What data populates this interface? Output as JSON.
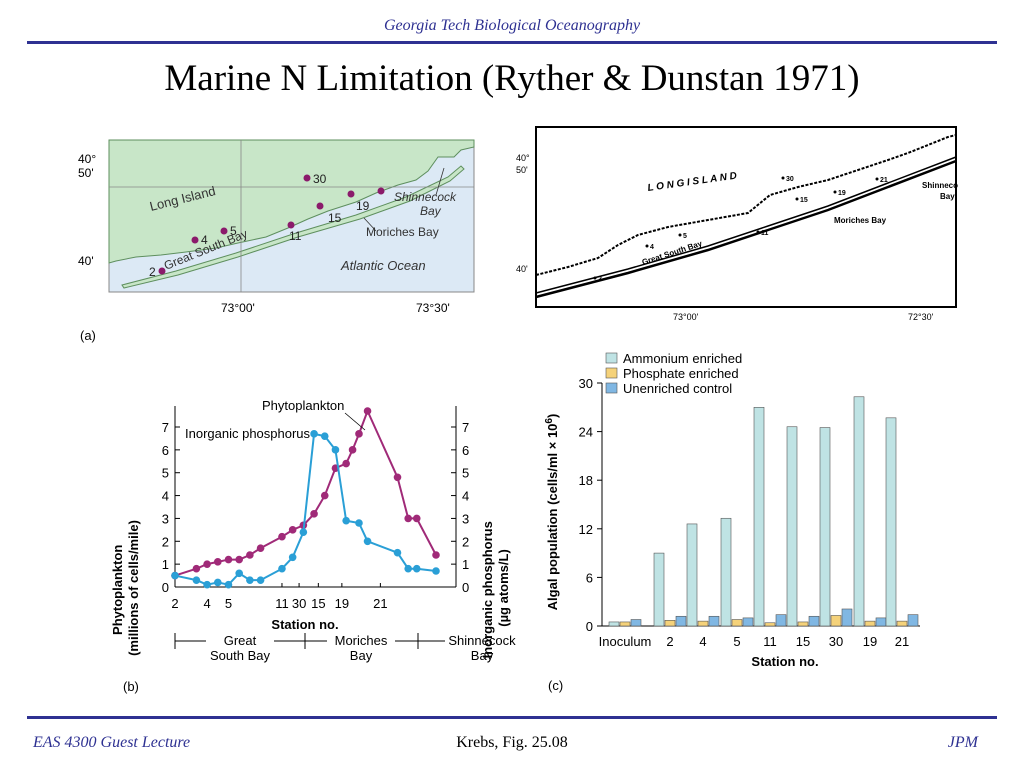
{
  "header": {
    "title": "Georgia Tech Biological Oceanography"
  },
  "slide": {
    "title": "Marine N Limitation (Ryther & Dunstan 1971)"
  },
  "footer": {
    "left": "EAS 4300 Guest Lecture",
    "center": "Krebs, Fig. 25.08",
    "right": "JPM"
  },
  "colors": {
    "accent": "#2e3192",
    "land": "#c8e6c8",
    "ocean": "#dce9f5",
    "station": "#8b1a6b",
    "phyto": "#a02a78",
    "phosphorus": "#2a9fd6",
    "ammonium": "#bfe3e4",
    "phosphate": "#f5d27a",
    "unenriched": "#80b7e3"
  },
  "map_a": {
    "panel_label": "(a)",
    "lat_labels": [
      "40°",
      "50'",
      "40'"
    ],
    "lon_labels": [
      "73°00'",
      "73°30'"
    ],
    "place_labels": {
      "long_island": "Long Island",
      "great_south_bay": "Great South Bay",
      "moriches_bay": "Moriches Bay",
      "shinnecock_bay_1": "Shinnecock",
      "shinnecock_bay_2": "Bay",
      "atlantic_ocean": "Atlantic Ocean"
    },
    "stations": [
      "2",
      "4",
      "5",
      "11",
      "30",
      "15",
      "19"
    ]
  },
  "map_b": {
    "lat_labels": [
      "40°",
      "50'",
      "40'"
    ],
    "lon_labels": [
      "73°00'",
      "72°30'"
    ],
    "place_labels": {
      "long_island": "L O N G   I S L A N D",
      "great_south_bay": "Great South Bay",
      "moriches_bay": "Moriches Bay",
      "shinnecock_1": "Shinnecock",
      "shinnecock_2": "Bay"
    },
    "stations": [
      "2",
      "4",
      "5",
      "11",
      "30",
      "15",
      "19",
      "21"
    ]
  },
  "chart_data": [
    {
      "type": "line",
      "panel_label": "(b)",
      "x_tick_labels": [
        "2",
        "4",
        "5",
        "11",
        "30",
        "15",
        "19",
        "21"
      ],
      "xlabel": "Station no.",
      "ylabel_left": [
        "Phytoplankton",
        "(millions of cells/mile)"
      ],
      "ylabel_right": [
        "Inorganic phosphorus",
        "(µg atoms/L)"
      ],
      "ylim": [
        0,
        7
      ],
      "yticks": [
        0,
        1,
        2,
        3,
        4,
        5,
        6,
        7
      ],
      "regions": [
        "Great South Bay",
        "Moriches Bay",
        "Shinnecock Bay"
      ],
      "region_lines": [
        [
          "Great",
          "South Bay"
        ],
        [
          "Moriches",
          "Bay"
        ],
        [
          "Shinnecock",
          "Bay"
        ]
      ],
      "series": [
        {
          "name": "Phytoplankton",
          "x": [
            0,
            1,
            1.5,
            2,
            2.5,
            3,
            3.5,
            4,
            5,
            5.5,
            6,
            6.5,
            7,
            7.5,
            8,
            8.3,
            8.6,
            9,
            10.4,
            10.9,
            11.3,
            12.2
          ],
          "values": [
            0.5,
            0.8,
            1.0,
            1.1,
            1.2,
            1.2,
            1.4,
            1.7,
            2.2,
            2.5,
            2.7,
            3.2,
            4.0,
            5.2,
            5.4,
            6.0,
            6.7,
            7.7,
            4.8,
            3.0,
            3.0,
            1.4
          ]
        },
        {
          "name": "Inorganic phosphorus",
          "x": [
            0,
            1,
            1.5,
            2,
            2.5,
            3,
            3.5,
            4,
            5,
            5.5,
            6,
            6.5,
            7,
            7.5,
            8,
            8.6,
            9,
            10.4,
            10.9,
            11.3,
            12.2
          ],
          "values": [
            0.5,
            0.3,
            0.1,
            0.2,
            0.1,
            0.6,
            0.3,
            0.3,
            0.8,
            1.3,
            2.4,
            6.7,
            6.6,
            6.0,
            2.9,
            2.8,
            2.0,
            1.5,
            0.8,
            0.8,
            0.7
          ]
        }
      ]
    },
    {
      "type": "bar",
      "panel_label": "(c)",
      "categories": [
        "Inoculum",
        "2",
        "4",
        "5",
        "11",
        "15",
        "30",
        "19",
        "21"
      ],
      "xlabel": "Station no.",
      "ylabel": "Algal population (cells/ml × 10",
      "ylabel_exp": "6",
      "ylabel_close": ")",
      "ylim": [
        0,
        30
      ],
      "yticks": [
        0,
        6,
        12,
        18,
        24,
        30
      ],
      "series": [
        {
          "name": "Ammonium enriched",
          "values": [
            0.5,
            9.0,
            12.6,
            13.3,
            27.0,
            24.6,
            24.5,
            28.3,
            25.7
          ]
        },
        {
          "name": "Phosphate enriched",
          "values": [
            0.5,
            0.7,
            0.6,
            0.8,
            0.4,
            0.5,
            1.3,
            0.6,
            0.6
          ]
        },
        {
          "name": "Unenriched control",
          "values": [
            0.8,
            1.2,
            1.2,
            1.0,
            1.4,
            1.2,
            2.1,
            1.0,
            1.4
          ]
        }
      ]
    }
  ]
}
